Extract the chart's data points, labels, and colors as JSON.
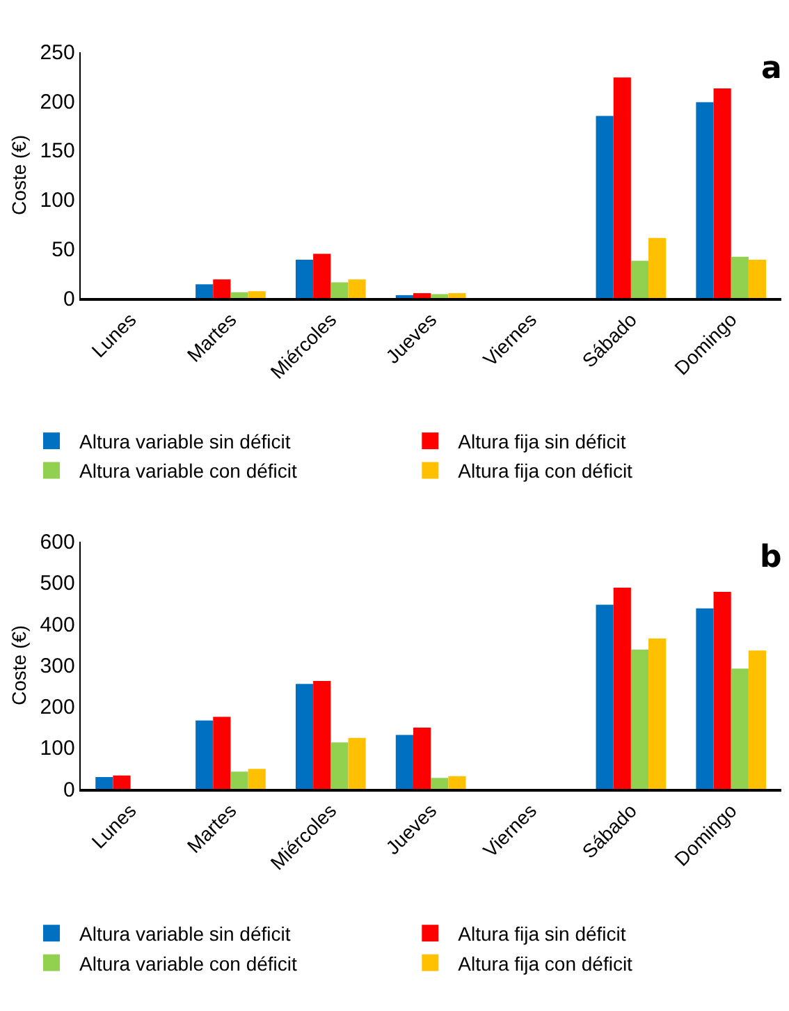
{
  "chart_data": [
    {
      "type": "bar",
      "ylabel": "Coste (€)",
      "annotations": [
        "a"
      ],
      "legend": "bottom",
      "categories": [
        "Lunes",
        "Martes",
        "Miércoles",
        "Jueves",
        "Viernes",
        "Sábado",
        "Domingo"
      ],
      "ylim": [
        0,
        250
      ],
      "yticks": [
        0,
        50,
        100,
        150,
        200,
        250
      ],
      "series": [
        {
          "name": "Altura variable sin déficit",
          "color": "#0070c0",
          "values": [
            0,
            14,
            39,
            3,
            0,
            185,
            199
          ]
        },
        {
          "name": "Altura fija sin déficit",
          "color": "#ff0000",
          "values": [
            0,
            19,
            45,
            5,
            0,
            224,
            213
          ]
        },
        {
          "name": "Altura variable con déficit",
          "color": "#92d050",
          "values": [
            0,
            6,
            16,
            4,
            0,
            38,
            42
          ]
        },
        {
          "name": "Altura fija con déficit",
          "color": "#ffc000",
          "values": [
            0,
            7,
            19,
            5,
            0,
            61,
            39
          ]
        }
      ]
    },
    {
      "type": "bar",
      "ylabel": "Coste (€)",
      "annotations": [
        "b"
      ],
      "legend": "bottom",
      "categories": [
        "Lunes",
        "Martes",
        "Miércoles",
        "Jueves",
        "Viernes",
        "Sábado",
        "Domingo"
      ],
      "ylim": [
        0,
        600
      ],
      "yticks": [
        0,
        100,
        200,
        300,
        400,
        500,
        600
      ],
      "series": [
        {
          "name": "Altura variable sin déficit",
          "color": "#0070c0",
          "values": [
            29,
            166,
            255,
            131,
            0,
            447,
            438
          ]
        },
        {
          "name": "Altura fija sin déficit",
          "color": "#ff0000",
          "values": [
            33,
            175,
            262,
            149,
            0,
            488,
            478
          ]
        },
        {
          "name": "Altura variable con déficit",
          "color": "#92d050",
          "values": [
            0,
            42,
            113,
            27,
            0,
            338,
            292
          ]
        },
        {
          "name": "Altura fija con déficit",
          "color": "#ffc000",
          "values": [
            0,
            49,
            124,
            31,
            0,
            365,
            336
          ]
        }
      ]
    }
  ]
}
